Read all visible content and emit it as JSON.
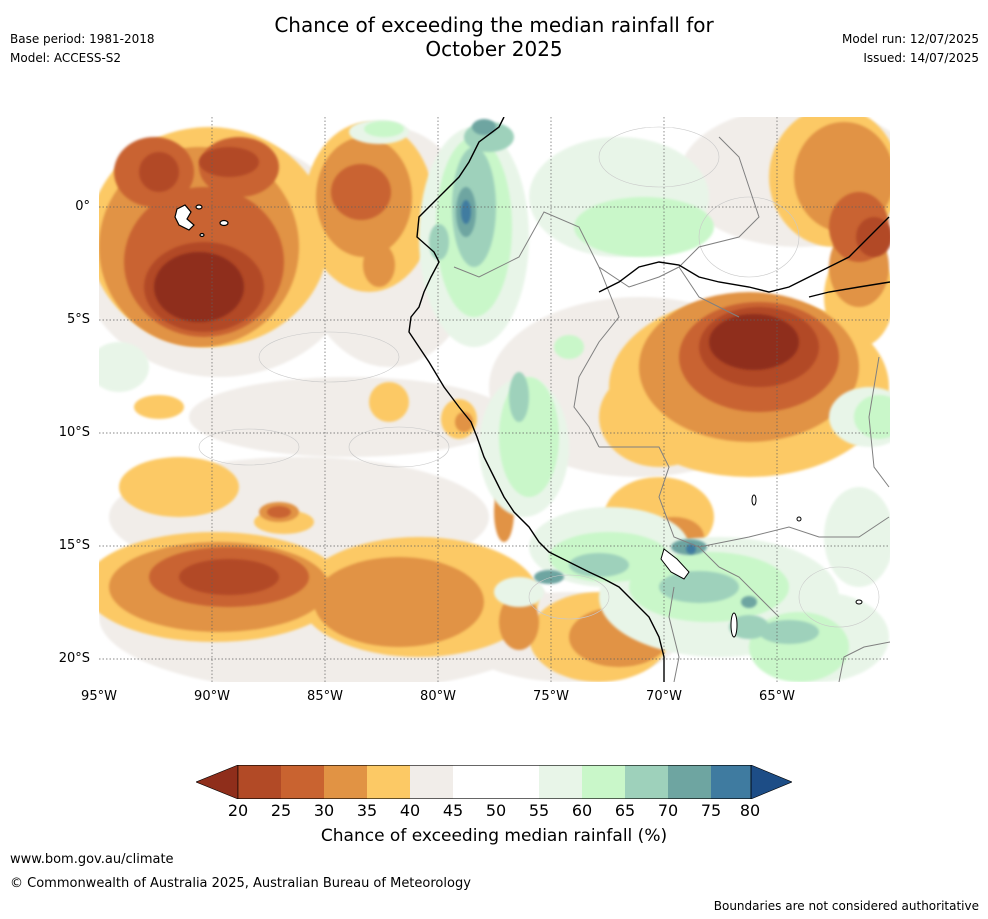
{
  "title": {
    "line1": "Chance of exceeding the median rainfall for",
    "line2": "October 2025"
  },
  "meta_left": {
    "base_period": "Base period: 1981-2018",
    "model": "Model: ACCESS-S2"
  },
  "meta_right": {
    "model_run": "Model run: 12/07/2025",
    "issued": "Issued: 14/07/2025"
  },
  "map": {
    "region": "Western South America and eastern Pacific",
    "lat_labels": [
      "0°",
      "5°S",
      "10°S",
      "15°S",
      "20°S"
    ],
    "lon_labels": [
      "95°W",
      "90°W",
      "85°W",
      "80°W",
      "75°W",
      "70°W",
      "65°W"
    ],
    "colors": {
      "c20": "#8f2e1b",
      "c25": "#b24a26",
      "c30": "#c96330",
      "c35": "#e19344",
      "c40": "#fcc965",
      "c45": "#f1ede9",
      "c50": "#ffffff",
      "c55": "#ffffff",
      "c60": "#e8f5e8",
      "c65": "#c9f7c9",
      "c70": "#9ed1bb",
      "c75": "#6ea5a1",
      "c80": "#3f7ba0",
      "c85": "#1d4d86"
    }
  },
  "colorbar": {
    "ticks": [
      "20",
      "25",
      "30",
      "35",
      "40",
      "45",
      "50",
      "55",
      "60",
      "65",
      "70",
      "75",
      "80"
    ],
    "label": "Chance of exceeding median rainfall (%)"
  },
  "footer": {
    "url": "www.bom.gov.au/climate",
    "copyright": "© Commonwealth of Australia 2025, Australian Bureau of Meteorology",
    "boundaries": "Boundaries are not considered authoritative"
  }
}
